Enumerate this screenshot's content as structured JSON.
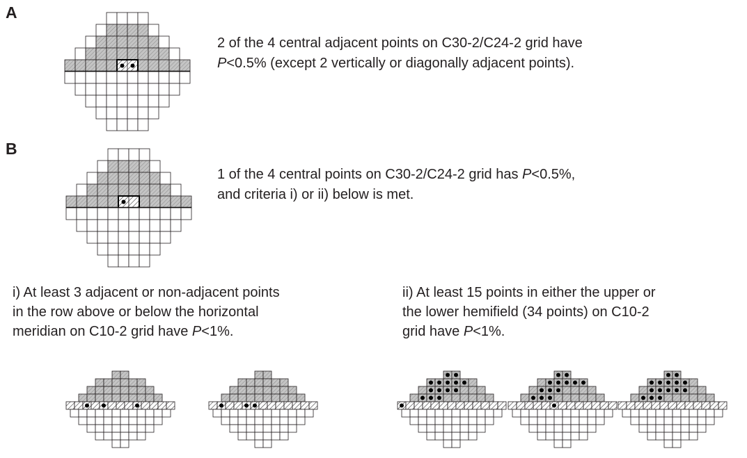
{
  "sections": [
    {
      "label": "A",
      "text": [
        [
          {
            "text": "2 of the 4 central adjacent points on C30-2/C24-2 grid have"
          }
        ],
        [
          {
            "text": "P",
            "italic": true
          },
          {
            "text": "<0.5% (except 2 vertically or diagonally adjacent points)."
          }
        ]
      ]
    },
    {
      "label": "B",
      "text": [
        [
          {
            "text": "1 of the 4 central points on C30-2/C24-2 grid has "
          },
          {
            "text": "P",
            "italic": true
          },
          {
            "text": "<0.5%,"
          }
        ],
        [
          {
            "text": "and criteria i) or ii) below is met."
          }
        ]
      ]
    }
  ],
  "criteria": [
    {
      "text": [
        [
          {
            "text": "i) At least 3 adjacent or non-adjacent points"
          }
        ],
        [
          {
            "text": "in the row above or below the horizontal"
          }
        ],
        [
          {
            "text": "meridian on C10-2 grid have "
          },
          {
            "text": "P",
            "italic": true
          },
          {
            "text": "<1%."
          }
        ]
      ]
    },
    {
      "text": [
        [
          {
            "text": "ii)  At least 15 points in either the upper or"
          }
        ],
        [
          {
            "text": "the lower hemifield (34 points) on C10-2"
          }
        ],
        [
          {
            "text": "grid have "
          },
          {
            "text": "P",
            "italic": true
          },
          {
            "text": "<1%."
          }
        ]
      ]
    }
  ]
}
